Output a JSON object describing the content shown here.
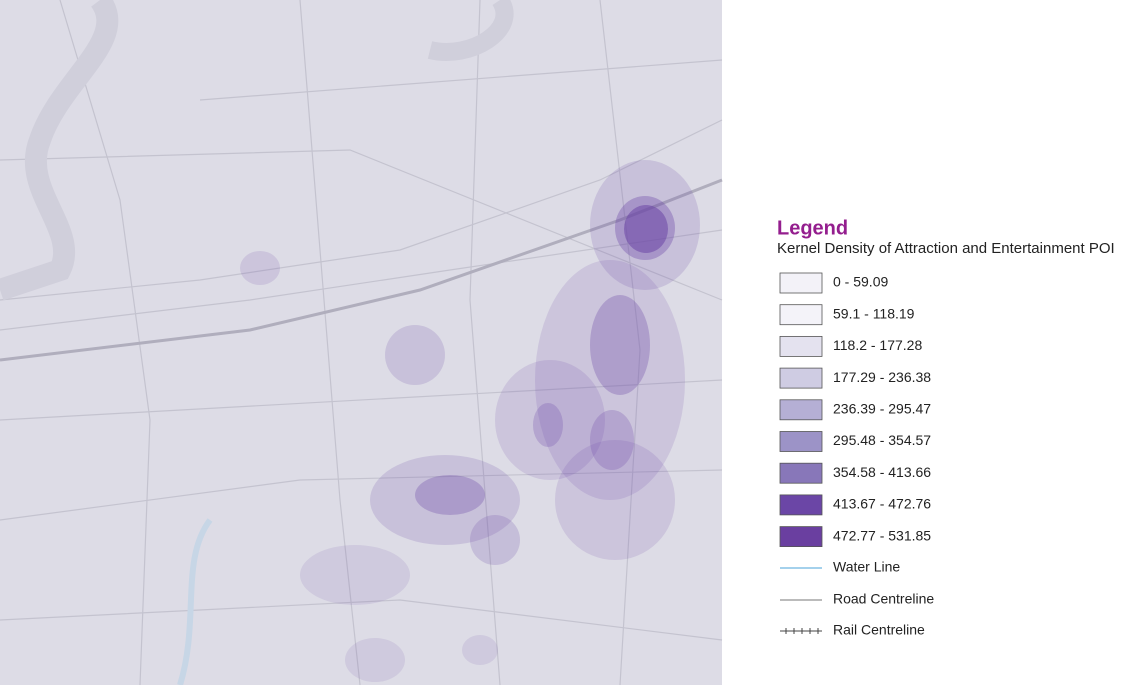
{
  "legend": {
    "title": "Legend",
    "subtitle": "Kernel Density of Attraction and Entertainment POI",
    "classes": [
      {
        "label": "0 - 59.09",
        "color": "#f3f2f8"
      },
      {
        "label": "59.1 - 118.19",
        "color": "#f4f3f9"
      },
      {
        "label": "118.2 - 177.28",
        "color": "#e4e2ef"
      },
      {
        "label": "177.29 - 236.38",
        "color": "#cfcce3"
      },
      {
        "label": "236.39 - 295.47",
        "color": "#b5afd5"
      },
      {
        "label": "295.48 - 354.57",
        "color": "#9c93c7"
      },
      {
        "label": "354.58 - 413.66",
        "color": "#8877b9"
      },
      {
        "label": "413.67 - 472.76",
        "color": "#6b46a6"
      },
      {
        "label": "472.77 - 531.85",
        "color": "#6a3fa0"
      }
    ],
    "lines": [
      {
        "label": "Water Line"
      },
      {
        "label": "Road Centreline"
      },
      {
        "label": "Rail Centreline"
      }
    ]
  }
}
